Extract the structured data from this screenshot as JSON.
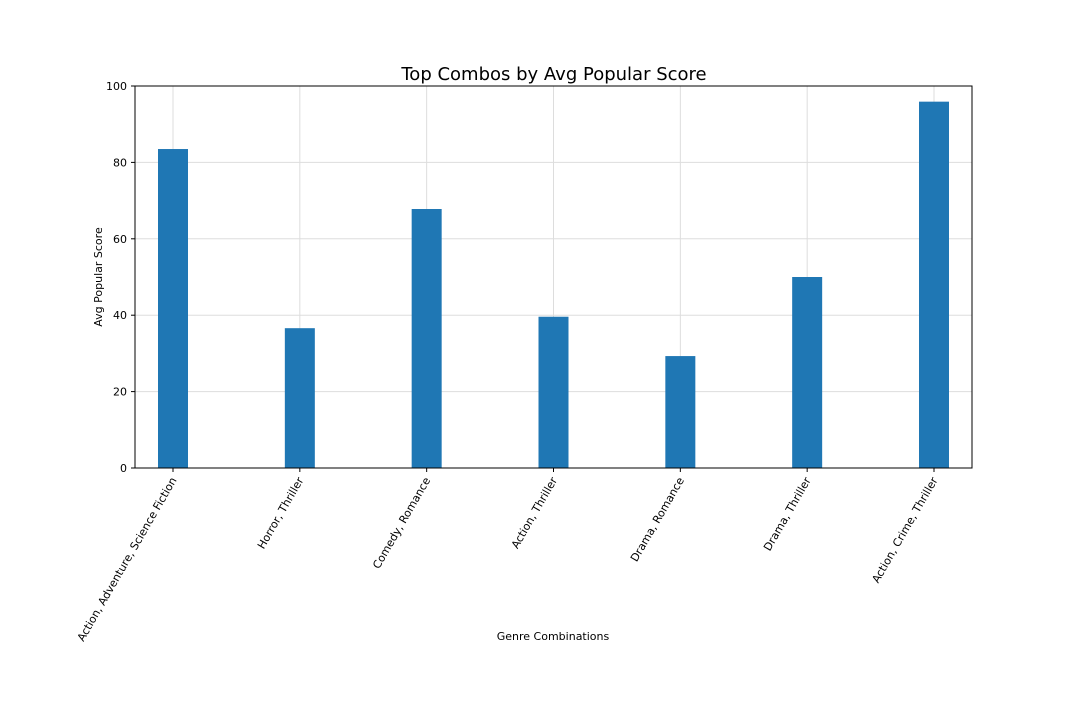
{
  "chart_data": {
    "type": "bar",
    "title": "Top Combos by Avg Popular Score",
    "xlabel": "Genre Combinations",
    "ylabel": "Avg Popular Score",
    "categories": [
      "Action, Adventure, Science Fiction",
      "Horror, Thriller",
      "Comedy, Romance",
      "Action, Thriller",
      "Drama, Romance",
      "Drama, Thriller",
      "Action, Crime, Thriller"
    ],
    "values": [
      83.5,
      36.6,
      67.8,
      39.6,
      29.3,
      50.0,
      95.9
    ],
    "ylim": [
      0,
      100
    ],
    "yticks": [
      "0",
      "20",
      "40",
      "60",
      "80",
      "100"
    ],
    "grid": true,
    "legend": "none",
    "bar_color": "#1f77b4",
    "grid_color": "#dddddd"
  }
}
